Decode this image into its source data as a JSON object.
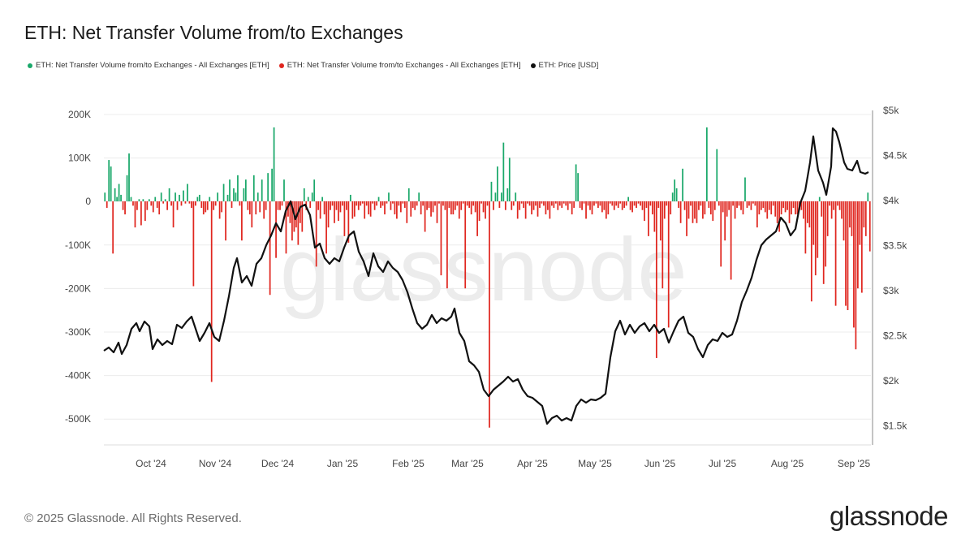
{
  "title": "ETH: Net Transfer Volume from/to Exchanges",
  "legend": [
    {
      "label": "ETH: Net Transfer Volume from/to Exchanges - All Exchanges [ETH]",
      "color": "#1aa86a"
    },
    {
      "label": "ETH: Net Transfer Volume from/to Exchanges - All Exchanges [ETH]",
      "color": "#e0261f"
    },
    {
      "label": "ETH: Price [USD]",
      "color": "#111111"
    }
  ],
  "footer": "© 2025 Glassnode. All Rights Reserved.",
  "logo": "glassnode",
  "watermark": "glassnode",
  "chart_data": {
    "type": "bar",
    "left_axis": {
      "ticks": [
        "200K",
        "100K",
        "0",
        "-100K",
        "-200K",
        "-300K",
        "-400K",
        "-500K"
      ],
      "range": [
        -560000,
        200000
      ]
    },
    "right_axis": {
      "ticks": [
        "$5k",
        "$4.5k",
        "$4k",
        "$3.5k",
        "$3k",
        "$2.5k",
        "$2k",
        "$1.5k"
      ],
      "range": [
        1300,
        5000
      ]
    },
    "x_ticks": [
      "Oct '24",
      "Nov '24",
      "Dec '24",
      "Jan '25",
      "Feb '25",
      "Mar '25",
      "Apr '25",
      "May '25",
      "Jun '25",
      "Jul '25",
      "Aug '25",
      "Sep '25"
    ],
    "grid": true,
    "positive_color": "#1aa86a",
    "negative_color": "#e0261f",
    "price_color": "#111111",
    "net_volume_eth": [
      20000,
      -15000,
      95000,
      80000,
      -120000,
      30000,
      10000,
      40000,
      15000,
      -20000,
      -30000,
      60000,
      110000,
      10000,
      -10000,
      -60000,
      -20000,
      5000,
      -55000,
      5000,
      -45000,
      -20000,
      5000,
      -10000,
      -25000,
      10000,
      -15000,
      -30000,
      20000,
      -5000,
      5000,
      -20000,
      30000,
      -10000,
      -60000,
      20000,
      -20000,
      15000,
      -10000,
      25000,
      -5000,
      40000,
      -5000,
      -15000,
      -195000,
      -10000,
      10000,
      15000,
      -15000,
      -30000,
      -25000,
      -20000,
      10000,
      -415000,
      -20000,
      -10000,
      20000,
      -40000,
      -25000,
      40000,
      -90000,
      15000,
      50000,
      -15000,
      30000,
      20000,
      60000,
      -10000,
      -90000,
      30000,
      50000,
      -20000,
      -30000,
      -60000,
      60000,
      -30000,
      20000,
      -25000,
      50000,
      -40000,
      -20000,
      65000,
      -215000,
      75000,
      170000,
      -130000,
      -20000,
      -20000,
      -10000,
      50000,
      -120000,
      -35000,
      -50000,
      -90000,
      -70000,
      -60000,
      -100000,
      -50000,
      -70000,
      30000,
      -20000,
      10000,
      -15000,
      20000,
      50000,
      -150000,
      -20000,
      -40000,
      10000,
      -30000,
      -120000,
      -60000,
      -20000,
      -10000,
      -50000,
      -20000,
      -45000,
      -25000,
      -10000,
      -80000,
      -20000,
      -95000,
      15000,
      -40000,
      -35000,
      -10000,
      -20000,
      -10000,
      -5000,
      -40000,
      -10000,
      -30000,
      -35000,
      -5000,
      -20000,
      -10000,
      10000,
      -15000,
      -10000,
      -30000,
      -5000,
      20000,
      -20000,
      -5000,
      -30000,
      -40000,
      -10000,
      -25000,
      -5000,
      -15000,
      -50000,
      30000,
      -35000,
      -15000,
      -20000,
      -10000,
      20000,
      -30000,
      -10000,
      -70000,
      -20000,
      -15000,
      -35000,
      -25000,
      -10000,
      -50000,
      -5000,
      -170000,
      -10000,
      -20000,
      -200000,
      -15000,
      -30000,
      -30000,
      -20000,
      -10000,
      -40000,
      -20000,
      -5000,
      -200000,
      -10000,
      -15000,
      -30000,
      -10000,
      -25000,
      -80000,
      -45000,
      -5000,
      -25000,
      -40000,
      -10000,
      -520000,
      45000,
      -20000,
      20000,
      80000,
      -15000,
      20000,
      135000,
      -20000,
      30000,
      100000,
      -20000,
      -10000,
      20000,
      -40000,
      -20000,
      -5000,
      -15000,
      -40000,
      -5000,
      -10000,
      -30000,
      -20000,
      -10000,
      -35000,
      -15000,
      -5000,
      -10000,
      -30000,
      -20000,
      -40000,
      -10000,
      -15000,
      -5000,
      -20000,
      -10000,
      -15000,
      -5000,
      -10000,
      -20000,
      -5000,
      -30000,
      -15000,
      85000,
      65000,
      -15000,
      -20000,
      -5000,
      -40000,
      -10000,
      -20000,
      -30000,
      -10000,
      -5000,
      -15000,
      -10000,
      -25000,
      -20000,
      -40000,
      -30000,
      -5000,
      -10000,
      -20000,
      -10000,
      -15000,
      -5000,
      -20000,
      -15000,
      -10000,
      10000,
      -20000,
      -25000,
      -10000,
      -15000,
      -5000,
      -10000,
      -20000,
      -45000,
      -15000,
      -80000,
      -10000,
      -30000,
      -70000,
      -360000,
      -15000,
      -90000,
      -200000,
      -40000,
      -10000,
      -290000,
      -30000,
      20000,
      50000,
      30000,
      -15000,
      -50000,
      75000,
      -20000,
      -80000,
      -40000,
      -10000,
      -50000,
      -40000,
      -50000,
      -20000,
      -10000,
      -40000,
      -30000,
      170000,
      -15000,
      -30000,
      -45000,
      -20000,
      120000,
      -10000,
      -150000,
      -25000,
      -90000,
      -35000,
      -20000,
      -180000,
      -10000,
      -40000,
      -15000,
      -10000,
      -20000,
      -30000,
      55000,
      -15000,
      -10000,
      -20000,
      -5000,
      -10000,
      -60000,
      -30000,
      -20000,
      -15000,
      -25000,
      -40000,
      -20000,
      -30000,
      -10000,
      -35000,
      -50000,
      -70000,
      -30000,
      -15000,
      -25000,
      -20000,
      -50000,
      -30000,
      -15000,
      -30000,
      -30000,
      -20000,
      -20000,
      -40000,
      -120000,
      -50000,
      -60000,
      -230000,
      -100000,
      -170000,
      -130000,
      10000,
      -35000,
      -190000,
      -150000,
      -80000,
      -10000,
      -40000,
      -20000,
      -240000,
      -10000,
      -20000,
      -40000,
      -90000,
      -240000,
      -250000,
      -60000,
      -80000,
      -290000,
      -340000,
      -200000,
      -100000,
      -210000,
      -60000,
      -80000,
      20000,
      -115000
    ]
  }
}
